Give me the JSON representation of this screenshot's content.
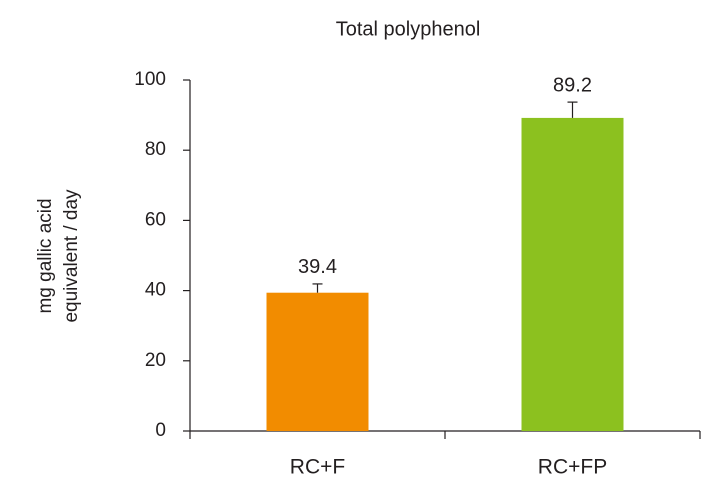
{
  "chart_data": {
    "type": "bar",
    "title": "Total polyphenol",
    "ylabel": [
      "mg gallic acid",
      "equivalent / day"
    ],
    "categories": [
      "RC+F",
      "RC+FP"
    ],
    "values": [
      39.4,
      89.2
    ],
    "errors": [
      2.5,
      4.5
    ],
    "colors": [
      "#f28c00",
      "#8cc11f"
    ],
    "ylim": [
      0,
      100
    ],
    "yticks": [
      0,
      20,
      40,
      60,
      80,
      100
    ],
    "grid": false
  }
}
